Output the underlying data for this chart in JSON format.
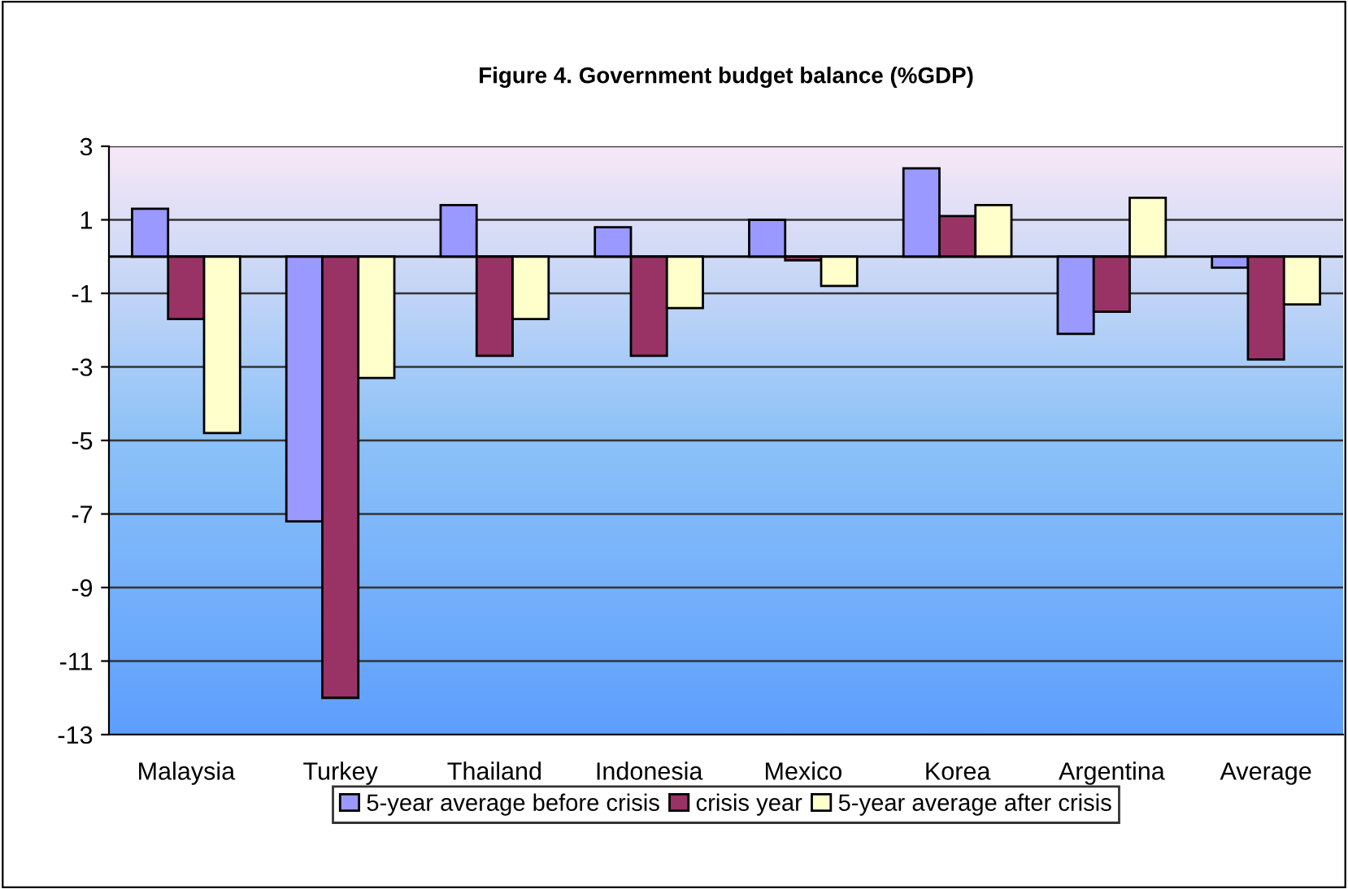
{
  "chart_data": {
    "type": "bar",
    "title": "Figure 4. Government budget balance (%GDP)",
    "categories": [
      "Malaysia",
      "Turkey",
      "Thailand",
      "Indonesia",
      "Mexico",
      "Korea",
      "Argentina",
      "Average"
    ],
    "series": [
      {
        "name": "5-year average before crisis",
        "color": "#9999ff",
        "values": [
          1.3,
          -7.2,
          1.4,
          0.8,
          1.0,
          2.4,
          -2.1,
          -0.3
        ]
      },
      {
        "name": "crisis year",
        "color": "#993366",
        "values": [
          -1.7,
          -12.0,
          -2.7,
          -2.7,
          -0.1,
          1.1,
          -1.5,
          -2.8
        ]
      },
      {
        "name": "5-year average after crisis",
        "color": "#ffffcc",
        "values": [
          -4.8,
          -3.3,
          -1.7,
          -1.4,
          -0.8,
          1.4,
          1.6,
          -1.3
        ]
      }
    ],
    "ylim": [
      -13,
      3
    ],
    "yticks": [
      -13,
      -11,
      -9,
      -7,
      -5,
      -3,
      -1,
      1,
      3
    ],
    "grid": "y",
    "legend": "bottom"
  }
}
